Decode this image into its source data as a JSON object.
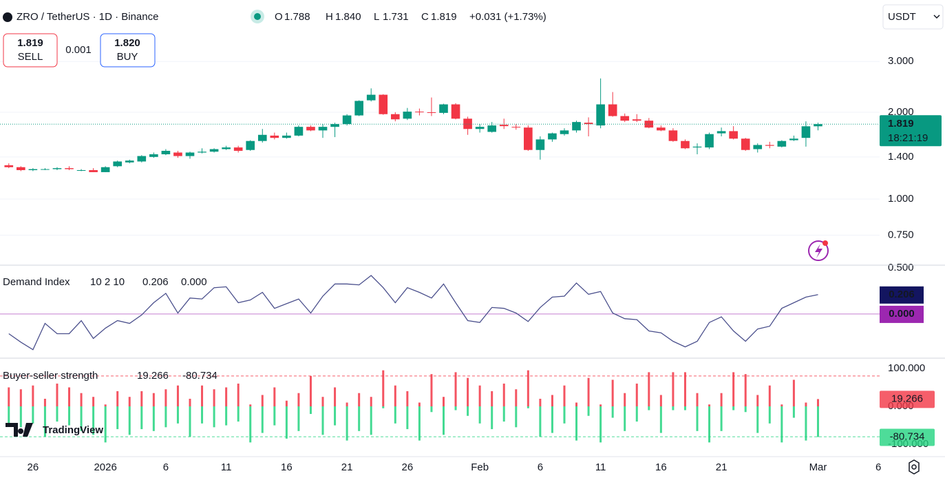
{
  "header": {
    "symbol": "ZRO / TetherUS · 1D · Binance",
    "ohlc": [
      {
        "label": "O",
        "value": "1.788"
      },
      {
        "label": "H",
        "value": "1.840"
      },
      {
        "label": "L",
        "value": "1.731"
      },
      {
        "label": "C",
        "value": "1.819"
      }
    ],
    "change": "+0.031 (+1.73%)",
    "currency": "USDT"
  },
  "trade": {
    "sell": {
      "price": "1.819",
      "label": "SELL"
    },
    "spread": "0.001",
    "buy": {
      "price": "1.820",
      "label": "BUY"
    }
  },
  "watermark": "TradingView",
  "chart_data": [
    {
      "type": "candlestick",
      "log_scale": true,
      "grid": true,
      "up_color": "#089981",
      "down_color": "#f23645",
      "categories": [
        null,
        null,
        "26",
        null,
        null,
        null,
        null,
        null,
        "2026",
        null,
        null,
        null,
        null,
        "6",
        null,
        null,
        null,
        null,
        "11",
        null,
        null,
        null,
        null,
        "16",
        null,
        null,
        null,
        null,
        "21",
        null,
        null,
        null,
        null,
        "26",
        null,
        null,
        null,
        null,
        null,
        "Feb",
        null,
        null,
        null,
        null,
        "6",
        null,
        null,
        null,
        null,
        "11",
        null,
        null,
        null,
        null,
        "16",
        null,
        null,
        null,
        null,
        "21",
        null,
        null,
        null,
        null,
        null,
        null,
        null,
        "Mar",
        null,
        null,
        null,
        null,
        "6"
      ],
      "open": [
        1.31,
        1.29,
        1.26,
        1.27,
        1.27,
        1.28,
        1.26,
        1.26,
        1.24,
        1.3,
        1.34,
        1.35,
        1.4,
        1.43,
        1.45,
        1.41,
        1.45,
        1.46,
        1.49,
        1.51,
        1.48,
        1.59,
        1.66,
        1.63,
        1.66,
        1.78,
        1.73,
        1.78,
        1.82,
        1.95,
        2.2,
        2.3,
        1.97,
        1.9,
        2.01,
        2.0,
        1.99,
        2.13,
        1.9,
        1.75,
        1.71,
        1.81,
        1.78,
        1.77,
        1.48,
        1.61,
        1.68,
        1.73,
        1.84,
        1.8,
        2.13,
        1.94,
        1.89,
        1.87,
        1.77,
        1.73,
        1.59,
        1.51,
        1.51,
        1.69,
        1.72,
        1.62,
        1.49,
        1.54,
        1.52,
        1.6,
        1.63,
        1.788,
        null,
        null,
        null,
        null,
        null
      ],
      "high": [
        1.33,
        1.3,
        1.28,
        1.28,
        1.29,
        1.3,
        1.27,
        1.28,
        1.3,
        1.36,
        1.37,
        1.42,
        1.45,
        1.49,
        1.47,
        1.46,
        1.5,
        1.5,
        1.53,
        1.53,
        1.6,
        1.75,
        1.7,
        1.7,
        1.8,
        1.8,
        1.82,
        1.84,
        1.97,
        2.2,
        2.42,
        2.31,
        2.0,
        2.07,
        2.06,
        2.25,
        2.14,
        2.15,
        1.93,
        1.82,
        1.85,
        1.9,
        1.82,
        1.8,
        1.65,
        1.7,
        1.76,
        1.87,
        1.92,
        2.62,
        2.35,
        1.98,
        1.97,
        1.91,
        1.8,
        1.76,
        1.61,
        1.56,
        1.7,
        1.77,
        1.79,
        1.63,
        1.56,
        1.58,
        1.6,
        1.66,
        1.86,
        1.84,
        null,
        null,
        null,
        null,
        null
      ],
      "low": [
        1.28,
        1.25,
        1.25,
        1.26,
        1.26,
        1.26,
        1.25,
        1.24,
        1.24,
        1.29,
        1.33,
        1.34,
        1.39,
        1.42,
        1.39,
        1.38,
        1.44,
        1.45,
        1.48,
        1.45,
        1.47,
        1.57,
        1.61,
        1.62,
        1.65,
        1.72,
        1.63,
        1.64,
        1.8,
        1.94,
        2.18,
        1.96,
        1.86,
        1.88,
        1.95,
        1.94,
        1.97,
        1.89,
        1.67,
        1.7,
        1.7,
        1.75,
        1.74,
        1.47,
        1.37,
        1.58,
        1.66,
        1.7,
        1.65,
        1.76,
        1.93,
        1.85,
        1.85,
        1.76,
        1.72,
        1.58,
        1.49,
        1.43,
        1.49,
        1.65,
        1.61,
        1.47,
        1.45,
        1.5,
        1.51,
        1.59,
        1.52,
        1.731,
        null,
        null,
        null,
        null,
        null
      ],
      "close": [
        1.29,
        1.26,
        1.27,
        1.27,
        1.28,
        1.27,
        1.26,
        1.24,
        1.29,
        1.35,
        1.36,
        1.41,
        1.43,
        1.47,
        1.41,
        1.45,
        1.46,
        1.49,
        1.51,
        1.47,
        1.59,
        1.67,
        1.63,
        1.66,
        1.78,
        1.73,
        1.78,
        1.82,
        1.95,
        2.19,
        2.3,
        1.97,
        1.89,
        2.01,
        2.0,
        1.99,
        2.13,
        1.9,
        1.75,
        1.78,
        1.8,
        1.79,
        1.77,
        1.48,
        1.61,
        1.69,
        1.73,
        1.85,
        1.82,
        2.13,
        1.94,
        1.87,
        1.87,
        1.77,
        1.73,
        1.59,
        1.5,
        1.52,
        1.68,
        1.72,
        1.62,
        1.48,
        1.54,
        1.53,
        1.59,
        1.62,
        1.788,
        1.819,
        null,
        null,
        null,
        null,
        null
      ],
      "ylim": [
        0.59,
        4.9
      ],
      "yticks": [
        {
          "value": 3,
          "label": "3.000"
        },
        {
          "value": 2,
          "label": "2.000"
        },
        {
          "value": 1.4,
          "label": "1.400"
        },
        {
          "value": 1,
          "label": "1.000"
        },
        {
          "value": 0.75,
          "label": "0.750"
        },
        {
          "value": 0.5,
          "label": "0.500"
        }
      ],
      "last_price": 1.819,
      "countdown": "18:21:19"
    },
    {
      "type": "line",
      "title": "Demand Index",
      "params": "10 2 10",
      "color": "#4a4f8c",
      "values": [
        -0.21,
        -0.3,
        -0.38,
        -0.1,
        -0.21,
        -0.21,
        -0.07,
        -0.26,
        -0.15,
        -0.07,
        -0.1,
        -0.01,
        0.12,
        0.22,
        0.01,
        0.17,
        0.16,
        0.28,
        0.29,
        0.12,
        0.15,
        0.23,
        0.06,
        0.11,
        0.16,
        0.01,
        0.19,
        0.32,
        0.32,
        0.31,
        0.41,
        0.28,
        0.12,
        0.28,
        0.23,
        0.17,
        0.32,
        0.12,
        -0.07,
        -0.09,
        0.07,
        0.06,
        0.01,
        -0.08,
        0.07,
        0.18,
        0.19,
        0.33,
        0.21,
        0.24,
        0.01,
        -0.05,
        -0.06,
        -0.18,
        -0.2,
        -0.29,
        -0.35,
        -0.29,
        -0.09,
        -0.03,
        -0.18,
        -0.29,
        -0.16,
        -0.13,
        0.06,
        0.12,
        0.18,
        0.206,
        null,
        null,
        null,
        null,
        null
      ],
      "value_color": "#131560",
      "zero_line": {
        "value": 0,
        "label": "0.000",
        "color": "#9c27b0"
      },
      "ylim": [
        -0.47,
        0.52
      ]
    },
    {
      "type": "bar",
      "title": "Buyer-seller strength",
      "series": [
        {
          "color": "#f23645",
          "values": [
            50,
            45,
            55,
            20,
            60,
            50,
            35,
            25,
            5,
            40,
            25,
            40,
            35,
            45,
            55,
            20,
            55,
            45,
            50,
            60,
            5,
            30,
            50,
            15,
            35,
            80,
            25,
            50,
            10,
            35,
            25,
            95,
            55,
            40,
            10,
            85,
            25,
            90,
            75,
            55,
            40,
            60,
            45,
            95,
            20,
            30,
            55,
            10,
            75,
            5,
            70,
            35,
            60,
            90,
            30,
            90,
            90,
            35,
            5,
            35,
            90,
            85,
            30,
            55,
            5,
            70,
            10,
            19.266,
            null,
            null,
            null,
            null,
            null
          ]
        },
        {
          "color": "#22d37f",
          "values": [
            -50,
            -55,
            -45,
            -80,
            -40,
            -50,
            -65,
            -75,
            -95,
            -60,
            -75,
            -60,
            -65,
            -55,
            -45,
            -80,
            -45,
            -55,
            -50,
            -40,
            -95,
            -70,
            -50,
            -85,
            -65,
            -20,
            -75,
            -50,
            -90,
            -65,
            -75,
            -5,
            -45,
            -60,
            -90,
            -15,
            -75,
            -10,
            -25,
            -45,
            -60,
            -40,
            -55,
            -5,
            -80,
            -70,
            -45,
            -90,
            -25,
            -95,
            -30,
            -65,
            -40,
            -10,
            -70,
            -10,
            -10,
            -65,
            -95,
            -65,
            -10,
            -15,
            -70,
            -45,
            -95,
            -30,
            -90,
            -80.734,
            null,
            null,
            null,
            null,
            null
          ]
        }
      ],
      "levels": [
        80,
        -80
      ],
      "ylim": [
        -127,
        127
      ],
      "yticks": [
        {
          "value": 100,
          "label": "100.000"
        },
        {
          "value": 0,
          "label": "0.000"
        },
        {
          "value": -100,
          "label": "-100.000"
        }
      ]
    }
  ]
}
